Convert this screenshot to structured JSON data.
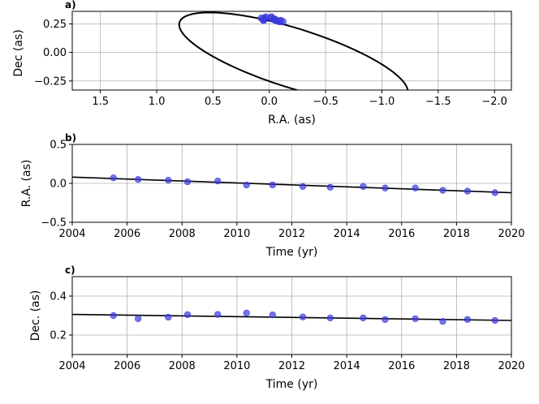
{
  "chart_data": [
    {
      "type": "scatter",
      "panel_label": "a)",
      "xlabel": "R.A. (as)",
      "ylabel": "Dec (as)",
      "xlim": [
        1.75,
        -2.15
      ],
      "ylim": [
        -0.33,
        0.36
      ],
      "x_inverted": true,
      "xticks": [
        1.5,
        1.0,
        0.5,
        0.0,
        -0.5,
        -1.0,
        -1.5,
        -2.0
      ],
      "xtick_labels": [
        "1.5",
        "1.0",
        "0.5",
        "0.0",
        "−0.5",
        "−1.0",
        "−1.5",
        "−2.0"
      ],
      "yticks": [
        0.25,
        0.0,
        -0.25
      ],
      "ytick_labels": [
        "0.25",
        "0.00",
        "−0.25"
      ],
      "grid": true,
      "points": [
        {
          "x": 0.07,
          "y": 0.3
        },
        {
          "x": 0.05,
          "y": 0.28
        },
        {
          "x": 0.05,
          "y": 0.29
        },
        {
          "x": 0.03,
          "y": 0.31
        },
        {
          "x": 0.04,
          "y": 0.3
        },
        {
          "x": -0.02,
          "y": 0.31
        },
        {
          "x": -0.02,
          "y": 0.3
        },
        {
          "x": -0.04,
          "y": 0.29
        },
        {
          "x": -0.05,
          "y": 0.29
        },
        {
          "x": -0.04,
          "y": 0.29
        },
        {
          "x": -0.06,
          "y": 0.28
        },
        {
          "x": -0.06,
          "y": 0.28
        },
        {
          "x": -0.09,
          "y": 0.27
        },
        {
          "x": -0.1,
          "y": 0.28
        },
        {
          "x": -0.12,
          "y": 0.27
        }
      ],
      "orbit": {
        "center": [
          -0.215,
          -0.05
        ],
        "semi_axes": [
          1.06,
          0.26
        ],
        "angle_deg": 17.2
      },
      "point_color": "#3a3adf",
      "line_color": "#000000"
    },
    {
      "type": "scatter",
      "panel_label": "b)",
      "xlabel": "Time (yr)",
      "ylabel": "R.A. (as)",
      "xlim": [
        2004,
        2020
      ],
      "ylim": [
        -0.5,
        0.5
      ],
      "xticks": [
        2004,
        2006,
        2008,
        2010,
        2012,
        2014,
        2016,
        2018,
        2020
      ],
      "xtick_labels": [
        "2004",
        "2006",
        "2008",
        "2010",
        "2012",
        "2014",
        "2016",
        "2018",
        "2020"
      ],
      "yticks": [
        0.5,
        0.0,
        -0.5
      ],
      "ytick_labels": [
        "0.5",
        "0.0",
        "−0.5"
      ],
      "grid": true,
      "x": [
        2005.5,
        2006.4,
        2007.5,
        2008.2,
        2009.3,
        2010.35,
        2011.3,
        2012.4,
        2013.4,
        2014.6,
        2015.4,
        2016.5,
        2017.5,
        2018.4,
        2019.4
      ],
      "y": [
        0.07,
        0.05,
        0.04,
        0.02,
        0.03,
        -0.02,
        -0.02,
        -0.04,
        -0.05,
        -0.04,
        -0.06,
        -0.06,
        -0.09,
        -0.1,
        -0.12
      ],
      "fit_line": {
        "x": [
          2004,
          2020
        ],
        "y": [
          0.08,
          -0.12
        ]
      },
      "point_color": "#3a3adf",
      "line_color": "#000000"
    },
    {
      "type": "scatter",
      "panel_label": "c)",
      "xlabel": "Time (yr)",
      "ylabel": "Dec. (as)",
      "xlim": [
        2004,
        2020
      ],
      "ylim": [
        0.1,
        0.5
      ],
      "xticks": [
        2004,
        2006,
        2008,
        2010,
        2012,
        2014,
        2016,
        2018,
        2020
      ],
      "xtick_labels": [
        "2004",
        "2006",
        "2008",
        "2010",
        "2012",
        "2014",
        "2016",
        "2018",
        "2020"
      ],
      "yticks": [
        0.4,
        0.2
      ],
      "ytick_labels": [
        "0.4",
        "0.2"
      ],
      "grid": true,
      "x": [
        2005.5,
        2006.4,
        2007.5,
        2008.2,
        2009.3,
        2010.35,
        2011.3,
        2012.4,
        2013.4,
        2014.6,
        2015.4,
        2016.5,
        2017.5,
        2018.4,
        2019.4
      ],
      "y": [
        0.3,
        0.284,
        0.292,
        0.305,
        0.306,
        0.313,
        0.304,
        0.293,
        0.288,
        0.288,
        0.28,
        0.284,
        0.27,
        0.28,
        0.275
      ],
      "fit_line": {
        "x": [
          2004,
          2020
        ],
        "y": [
          0.306,
          0.275
        ]
      },
      "point_color": "#3a3adf",
      "line_color": "#000000"
    }
  ]
}
